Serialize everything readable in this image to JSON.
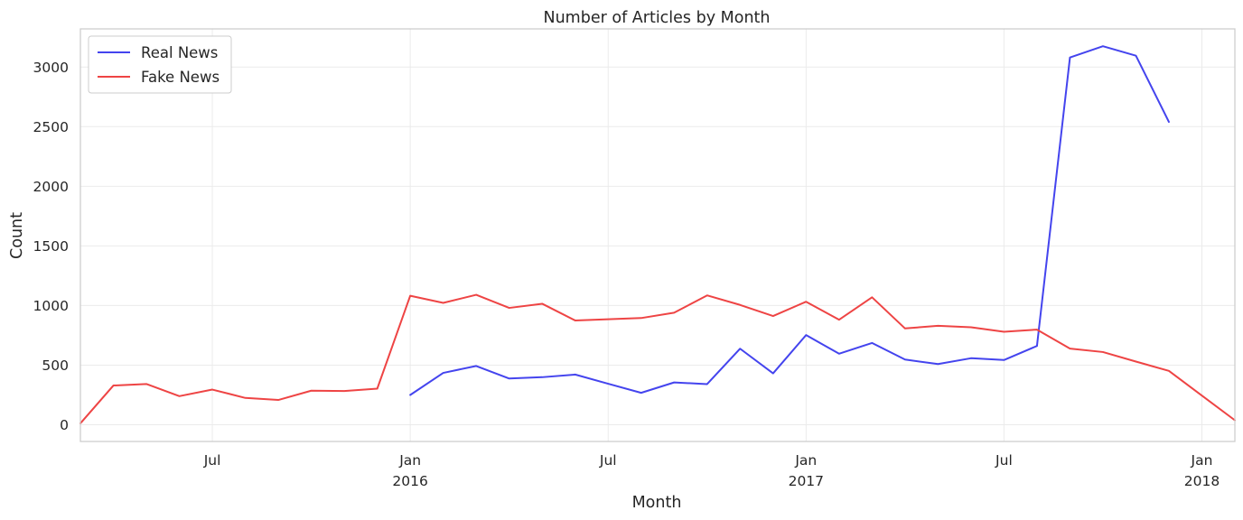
{
  "chart_data": {
    "type": "line",
    "title": "Number of Articles by Month",
    "xlabel": "Month",
    "ylabel": "Count",
    "x": [
      "2015-03",
      "2015-04",
      "2015-05",
      "2015-06",
      "2015-07",
      "2015-08",
      "2015-09",
      "2015-10",
      "2015-11",
      "2015-12",
      "2016-01",
      "2016-02",
      "2016-03",
      "2016-04",
      "2016-05",
      "2016-06",
      "2016-07",
      "2016-08",
      "2016-09",
      "2016-10",
      "2016-11",
      "2016-12",
      "2017-01",
      "2017-02",
      "2017-03",
      "2017-04",
      "2017-05",
      "2017-06",
      "2017-07",
      "2017-08",
      "2017-09",
      "2017-10",
      "2017-11",
      "2017-12",
      "2018-01",
      "2018-02"
    ],
    "series": [
      {
        "name": "Real News",
        "color": "#4444ee",
        "values": [
          null,
          null,
          null,
          null,
          null,
          null,
          null,
          null,
          null,
          null,
          250,
          435,
          493,
          388,
          399,
          421,
          344,
          268,
          355,
          341,
          638,
          431,
          752,
          596,
          686,
          547,
          509,
          558,
          543,
          661,
          3080,
          3175,
          3095,
          2540,
          null,
          null
        ]
      },
      {
        "name": "Fake News",
        "color": "#ee4444",
        "values": [
          12,
          329,
          342,
          240,
          295,
          225,
          208,
          286,
          283,
          303,
          1082,
          1022,
          1090,
          980,
          1015,
          875,
          885,
          895,
          940,
          1085,
          1005,
          912,
          1032,
          881,
          1069,
          808,
          830,
          818,
          780,
          798,
          639,
          610,
          530,
          452,
          245,
          38
        ]
      }
    ],
    "x_ticks": [
      {
        "date": "2015-07",
        "label": "Jul",
        "sublabel": ""
      },
      {
        "date": "2016-01",
        "label": "Jan",
        "sublabel": "2016"
      },
      {
        "date": "2016-07",
        "label": "Jul",
        "sublabel": ""
      },
      {
        "date": "2017-01",
        "label": "Jan",
        "sublabel": "2017"
      },
      {
        "date": "2017-07",
        "label": "Jul",
        "sublabel": ""
      },
      {
        "date": "2018-01",
        "label": "Jan",
        "sublabel": "2018"
      }
    ],
    "y_ticks": [
      0,
      500,
      1000,
      1500,
      2000,
      2500,
      3000
    ],
    "ylim": [
      -140,
      3320
    ],
    "xlim": [
      "2015-03",
      "2018-02"
    ],
    "grid": true,
    "legend_position": "top-left"
  }
}
